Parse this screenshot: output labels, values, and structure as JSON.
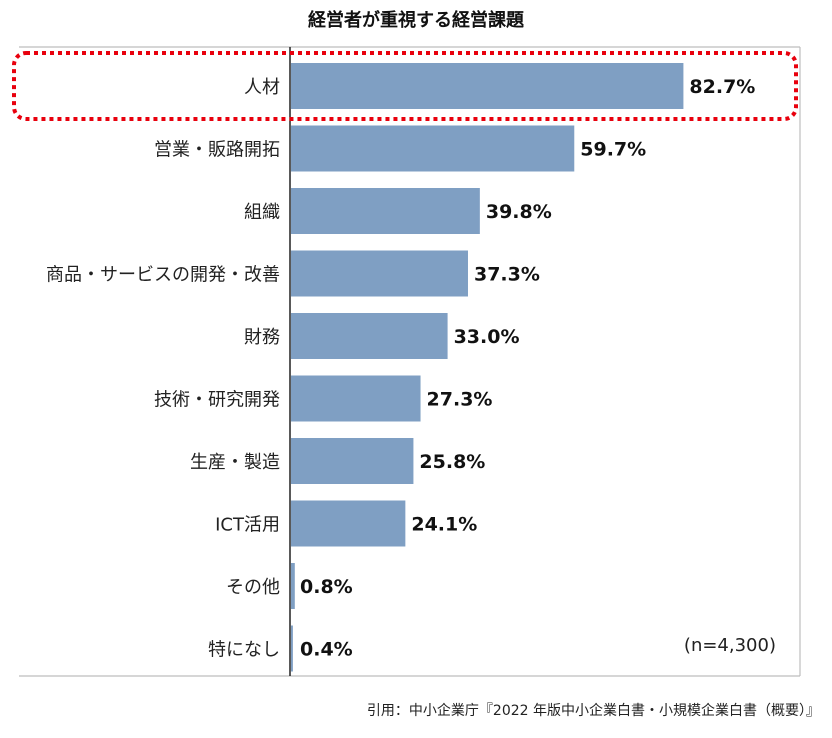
{
  "chart_data": {
    "type": "bar",
    "orientation": "horizontal",
    "title": "経営者が重視する経営課題",
    "categories": [
      "人材",
      "営業・販路開拓",
      "組織",
      "商品・サービスの開発・改善",
      "財務",
      "技術・研究開発",
      "生産・製造",
      "ICT活用",
      "その他",
      "特になし"
    ],
    "values": [
      82.7,
      59.7,
      39.8,
      37.3,
      33.0,
      27.3,
      25.8,
      24.1,
      0.8,
      0.4
    ],
    "value_labels": [
      "82.7%",
      "59.7%",
      "39.8%",
      "37.3%",
      "33.0%",
      "27.3%",
      "25.8%",
      "24.1%",
      "0.8%",
      "0.4%"
    ],
    "highlight_index": 0,
    "bar_color": "#7f9fc3",
    "highlight_color": "#e8000d",
    "xlim": [
      0,
      100
    ],
    "grid": false,
    "annotation": "(n=4,300)"
  },
  "footer": "引用：中小企業庁『2022 年版中小企業白書・小規模企業白書（概要）』"
}
